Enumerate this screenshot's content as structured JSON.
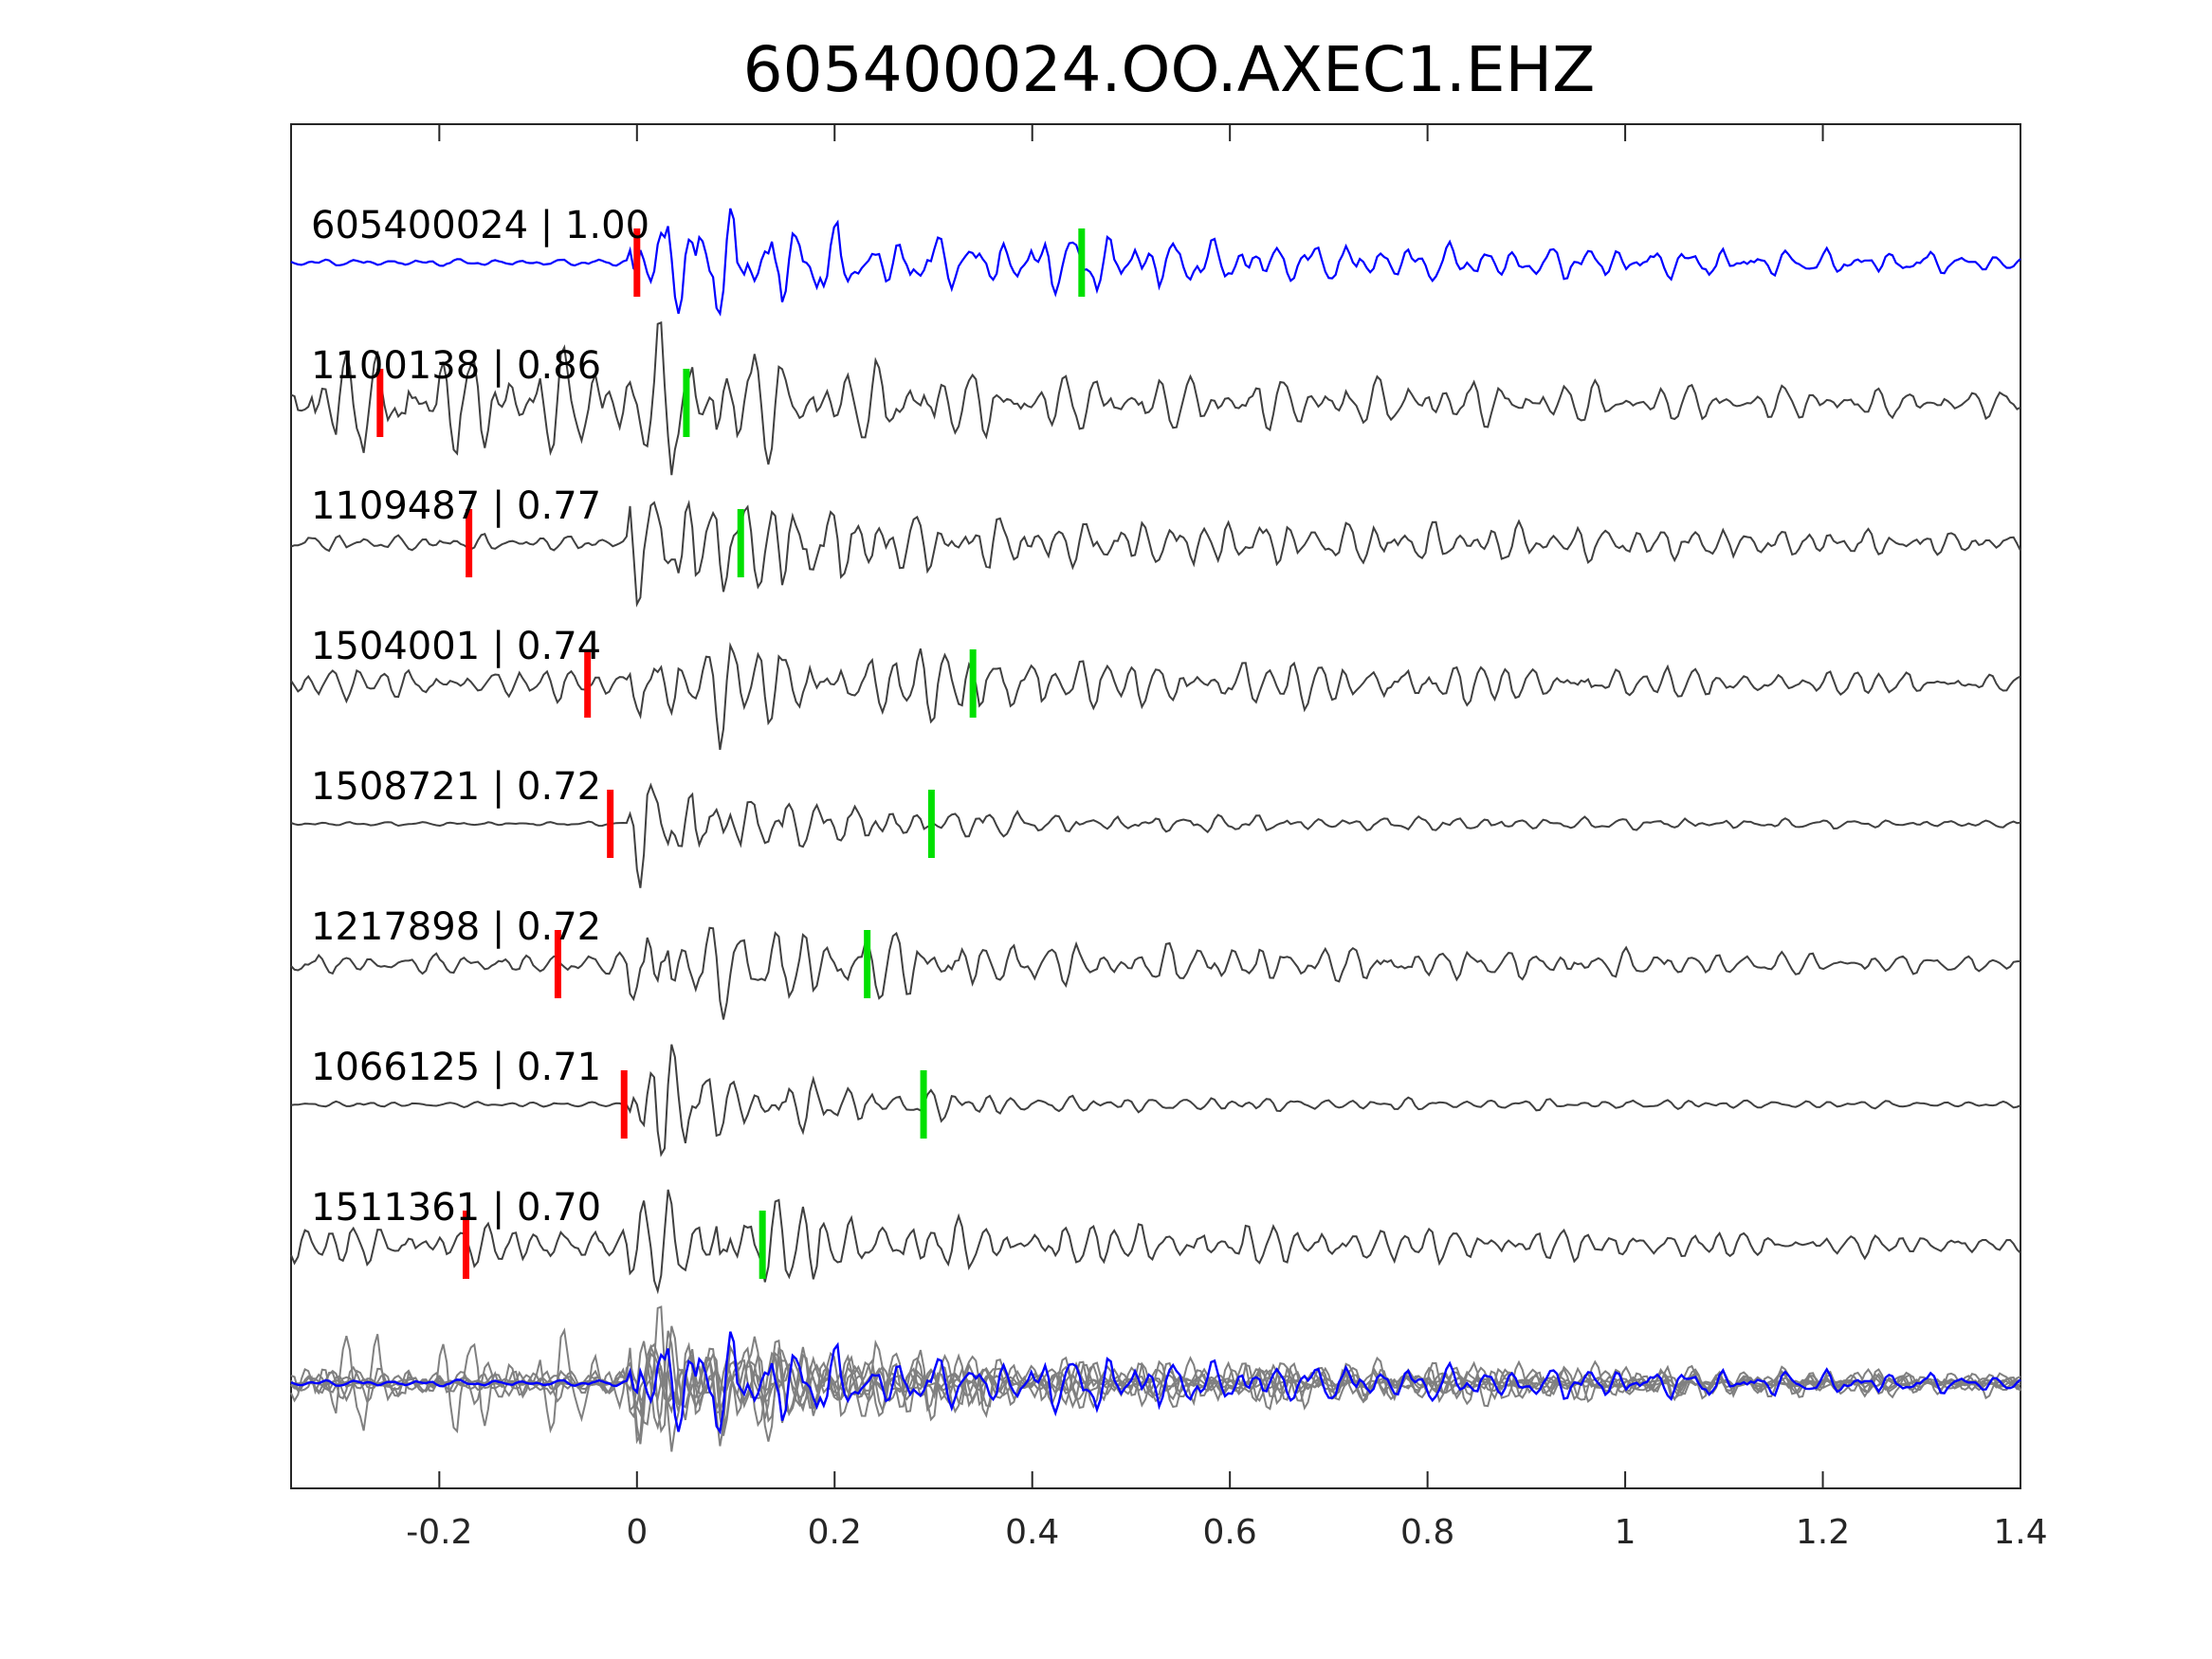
{
  "chart_data": {
    "type": "line",
    "title": "605400024.OO.AXEC1.EHZ",
    "xlabel": "",
    "ylabel": "",
    "xlim": [
      -0.35,
      1.4
    ],
    "xticks": [
      -0.2,
      0,
      0.2,
      0.4,
      0.6,
      0.8,
      1,
      1.2,
      1.4
    ],
    "xtick_labels": [
      "-0.2",
      "0",
      "0.2",
      "0.4",
      "0.6",
      "0.8",
      "1",
      "1.2",
      "1.4"
    ],
    "grid": false,
    "legend": "none",
    "colors": {
      "template": "#0000ff",
      "match": "#404040",
      "overlay": "#808080",
      "p_pick": "#ff0000",
      "s_pick": "#00e000",
      "axes": "#262626"
    },
    "series": [
      {
        "label": "605400024 | 1.00",
        "p_pick": 0.0,
        "s_pick": 0.45,
        "pre_amp": 0.05,
        "main_amp": 1.0,
        "coda_amp": 0.32,
        "seed": 1
      },
      {
        "label": "1100138 | 0.86",
        "p_pick": -0.26,
        "s_pick": 0.05,
        "pre_amp": 0.75,
        "main_amp": 1.0,
        "coda_amp": 0.4,
        "seed": 2
      },
      {
        "label": "1109487 | 0.77",
        "p_pick": -0.17,
        "s_pick": 0.105,
        "pre_amp": 0.12,
        "main_amp": 1.0,
        "coda_amp": 0.35,
        "seed": 3
      },
      {
        "label": "1504001 | 0.74",
        "p_pick": -0.05,
        "s_pick": 0.34,
        "pre_amp": 0.22,
        "main_amp": 0.8,
        "coda_amp": 0.35,
        "seed": 4
      },
      {
        "label": "1508721 | 0.72",
        "p_pick": -0.027,
        "s_pick": 0.298,
        "pre_amp": 0.03,
        "main_amp": 0.9,
        "coda_amp": 0.12,
        "seed": 5
      },
      {
        "label": "1217898 | 0.72",
        "p_pick": -0.08,
        "s_pick": 0.233,
        "pre_amp": 0.15,
        "main_amp": 1.0,
        "coda_amp": 0.28,
        "seed": 6
      },
      {
        "label": "1066125 | 0.71",
        "p_pick": -0.013,
        "s_pick": 0.29,
        "pre_amp": 0.04,
        "main_amp": 1.0,
        "coda_amp": 0.1,
        "seed": 7
      },
      {
        "label": "1511361 | 0.70",
        "p_pick": -0.173,
        "s_pick": 0.127,
        "pre_amp": 0.3,
        "main_amp": 0.85,
        "coda_amp": 0.3,
        "seed": 8
      }
    ]
  }
}
